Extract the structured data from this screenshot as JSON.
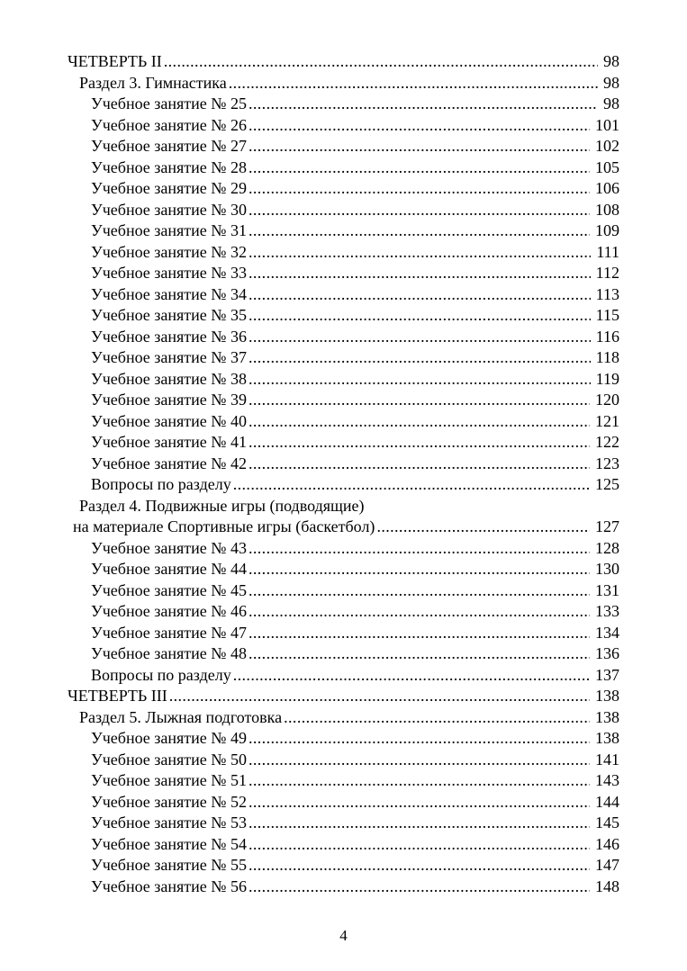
{
  "document": {
    "type": "table-of-contents",
    "language": "ru"
  },
  "colors": {
    "text": "#000000",
    "background": "#ffffff"
  },
  "toc": {
    "entries": [
      {
        "level": 0,
        "title": "ЧЕТВЕРТЬ II",
        "page": "98",
        "dots": true
      },
      {
        "level": 1,
        "title": "Раздел 3. Гимнастика",
        "page": "98",
        "dots": true
      },
      {
        "level": 2,
        "title": "Учебное занятие № 25",
        "page": "98",
        "dots": true
      },
      {
        "level": 2,
        "title": "Учебное занятие № 26",
        "page": "101",
        "dots": true
      },
      {
        "level": 2,
        "title": "Учебное занятие № 27",
        "page": "102",
        "dots": true
      },
      {
        "level": 2,
        "title": "Учебное занятие № 28",
        "page": "105",
        "dots": true
      },
      {
        "level": 2,
        "title": "Учебное занятие № 29",
        "page": "106",
        "dots": true
      },
      {
        "level": 2,
        "title": "Учебное занятие № 30",
        "page": "108",
        "dots": true
      },
      {
        "level": 2,
        "title": "Учебное занятие № 31",
        "page": "109",
        "dots": true
      },
      {
        "level": 2,
        "title": "Учебное занятие № 32",
        "page": "111",
        "dots": true
      },
      {
        "level": 2,
        "title": "Учебное занятие № 33",
        "page": "112",
        "dots": true
      },
      {
        "level": 2,
        "title": "Учебное занятие № 34",
        "page": "113",
        "dots": true
      },
      {
        "level": 2,
        "title": "Учебное занятие № 35",
        "page": "115",
        "dots": true
      },
      {
        "level": 2,
        "title": "Учебное занятие № 36",
        "page": "116",
        "dots": true
      },
      {
        "level": 2,
        "title": "Учебное занятие № 37",
        "page": "118",
        "dots": true
      },
      {
        "level": 2,
        "title": "Учебное занятие № 38",
        "page": "119",
        "dots": true
      },
      {
        "level": 2,
        "title": "Учебное занятие № 39",
        "page": "120",
        "dots": true
      },
      {
        "level": 2,
        "title": "Учебное занятие № 40",
        "page": "121",
        "dots": true
      },
      {
        "level": 2,
        "title": "Учебное занятие № 41",
        "page": "122",
        "dots": true
      },
      {
        "level": 2,
        "title": "Учебное занятие № 42",
        "page": "123",
        "dots": true
      },
      {
        "level": 2,
        "title": "Вопросы по разделу",
        "page": "125",
        "dots": true
      },
      {
        "level": 1,
        "title": "Раздел 4. Подвижные игры (подводящие)",
        "page": "",
        "dots": false
      },
      {
        "level": 1,
        "title": "на материале Спортивные игры (баскетбол) ",
        "page": "127",
        "dots": true,
        "continuation": true
      },
      {
        "level": 2,
        "title": "Учебное занятие № 43",
        "page": "128",
        "dots": true
      },
      {
        "level": 2,
        "title": "Учебное занятие № 44",
        "page": "130",
        "dots": true
      },
      {
        "level": 2,
        "title": "Учебное занятие № 45",
        "page": "131",
        "dots": true
      },
      {
        "level": 2,
        "title": "Учебное занятие № 46",
        "page": "133",
        "dots": true
      },
      {
        "level": 2,
        "title": "Учебное занятие № 47",
        "page": "134",
        "dots": true
      },
      {
        "level": 2,
        "title": "Учебное занятие № 48",
        "page": "136",
        "dots": true
      },
      {
        "level": 2,
        "title": "Вопросы по разделу",
        "page": "137",
        "dots": true
      },
      {
        "level": 0,
        "title": "ЧЕТВЕРТЬ III",
        "page": "138",
        "dots": true
      },
      {
        "level": 1,
        "title": "Раздел 5. Лыжная подготовка ",
        "page": "138",
        "dots": true
      },
      {
        "level": 2,
        "title": "Учебное занятие № 49",
        "page": "138",
        "dots": true
      },
      {
        "level": 2,
        "title": "Учебное занятие № 50",
        "page": "141",
        "dots": true
      },
      {
        "level": 2,
        "title": "Учебное занятие № 51",
        "page": "143",
        "dots": true
      },
      {
        "level": 2,
        "title": "Учебное занятие № 52",
        "page": "144",
        "dots": true
      },
      {
        "level": 2,
        "title": "Учебное занятие № 53",
        "page": "145",
        "dots": true
      },
      {
        "level": 2,
        "title": "Учебное занятие № 54",
        "page": "146",
        "dots": true
      },
      {
        "level": 2,
        "title": "Учебное занятие № 55",
        "page": "147",
        "dots": true
      },
      {
        "level": 2,
        "title": "Учебное занятие № 56",
        "page": "148",
        "dots": true
      }
    ]
  },
  "footer": {
    "page_number": "4"
  }
}
